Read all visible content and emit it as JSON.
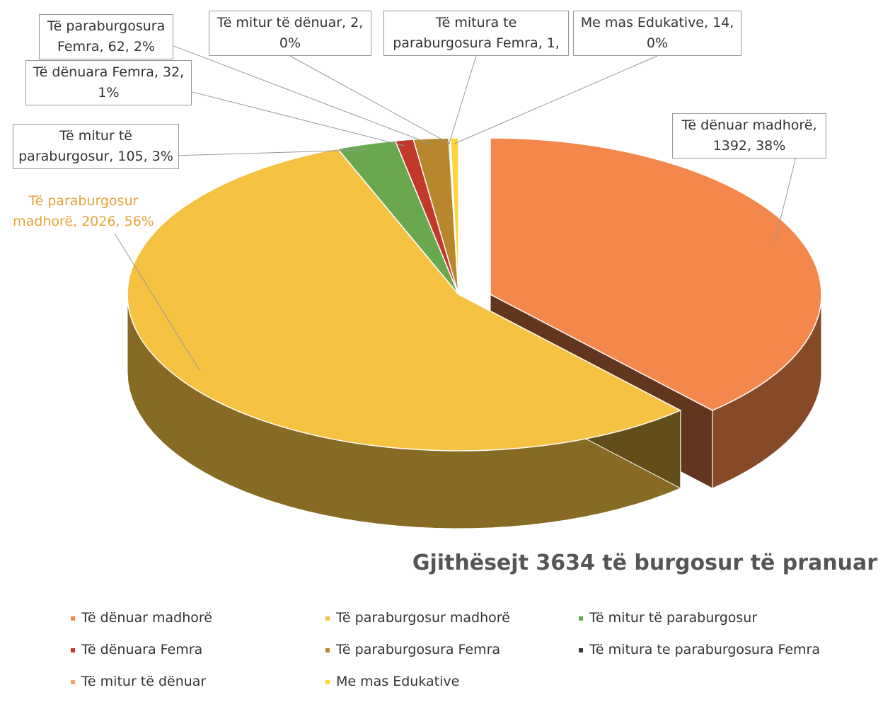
{
  "chart_data": {
    "type": "pie3d",
    "title": "Gjithësejt 3634 të burgosur të pranuar",
    "categories": [
      "Të dënuar madhorë",
      "Të paraburgosur madhorë",
      "Të mitur të paraburgosur",
      "Të dënuara Femra",
      "Të paraburgosura Femra",
      "Të mitura te paraburgosura Femra",
      "Të mitur të dënuar",
      "Me mas Edukative"
    ],
    "values": [
      1392,
      2026,
      105,
      32,
      62,
      1,
      2,
      14
    ],
    "value_labels": [
      "Të dënuar madhorë, 1392, 38%",
      "Të paraburgosur madhorë, 2026, 56%",
      "Të mitur të paraburgosur, 105, 3%",
      "Të dënuara Femra, 32, 1%",
      "Të paraburgosura Femra, 62, 2%",
      "Të mitura te paraburgosura Femra, 1,",
      "Të mitur të dënuar, 2, 0%",
      "Me mas Edukative, 14, 0%"
    ],
    "colors": [
      "#f4874b",
      "#f5c242",
      "#6aa84f",
      "#c0392b",
      "#b8862b",
      "#2f3b2a",
      "#f4a06a",
      "#ffd33a"
    ],
    "legend": "bottom"
  }
}
